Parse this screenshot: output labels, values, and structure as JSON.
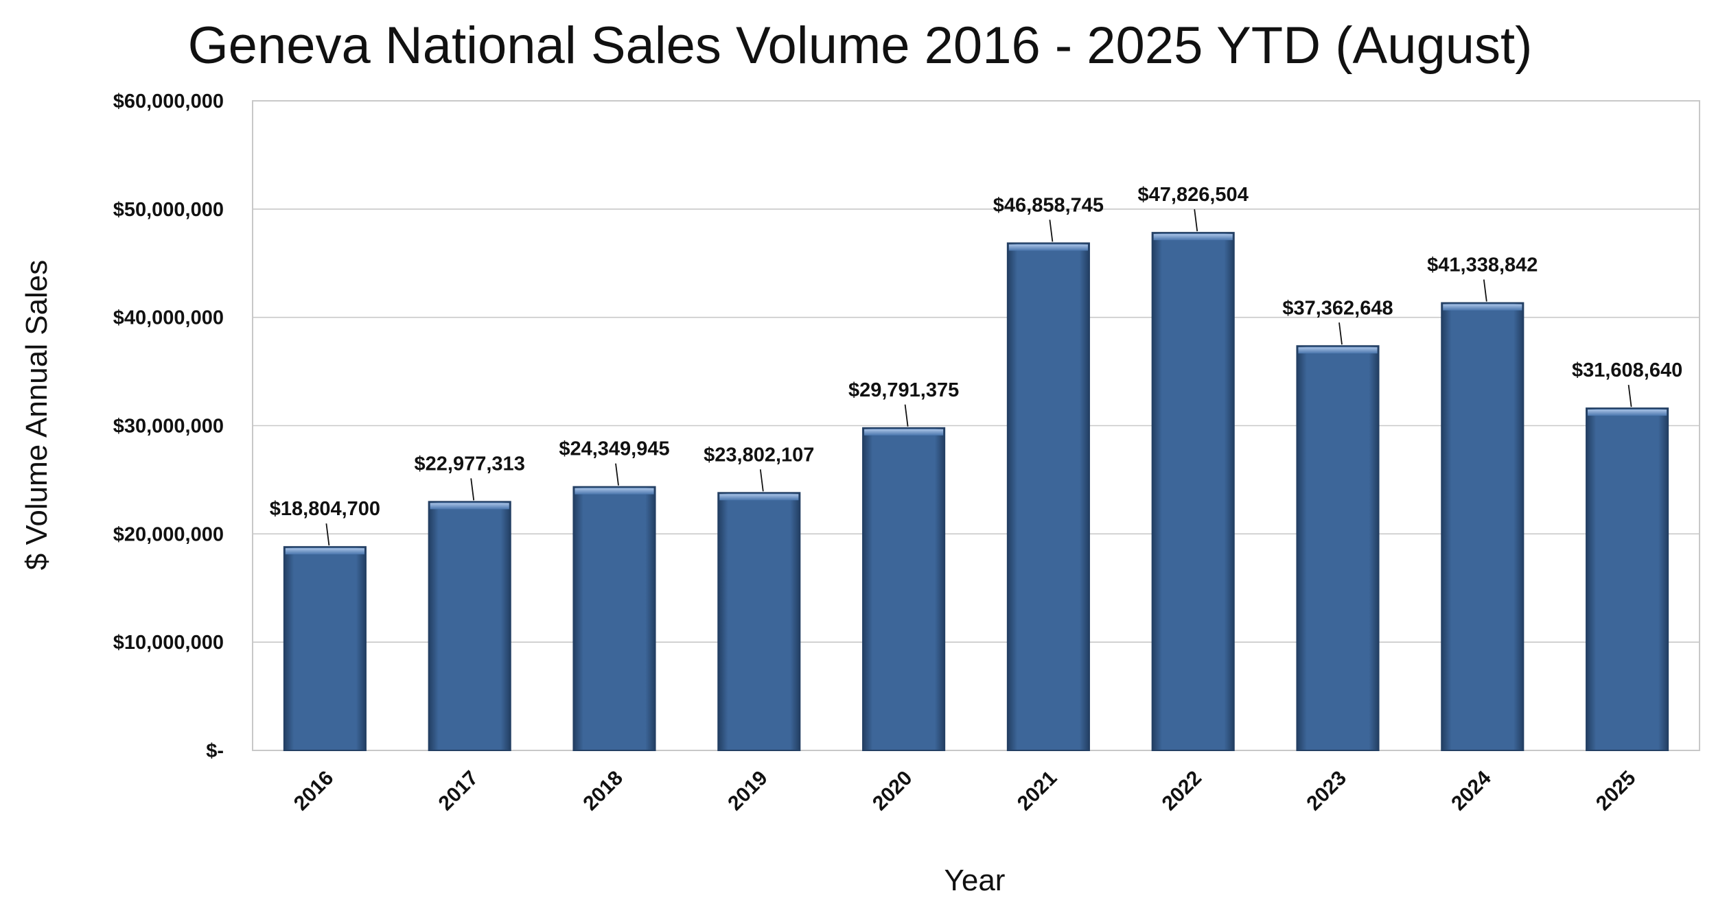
{
  "chart_data": {
    "type": "bar",
    "title": "Geneva National Sales Volume 2016 - 2025 YTD (August)",
    "xlabel": "Year",
    "ylabel": "$ Volume Annual Sales",
    "categories": [
      "2016",
      "2017",
      "2018",
      "2019",
      "2020",
      "2021",
      "2022",
      "2023",
      "2024",
      "2025"
    ],
    "values": [
      18804700,
      22977313,
      24349945,
      23802107,
      29791375,
      46858745,
      47826504,
      37362648,
      41338842,
      31608640
    ],
    "data_labels": [
      "$18,804,700",
      "$22,977,313",
      "$24,349,945",
      "$23,802,107",
      "$29,791,375",
      "$46,858,745",
      "$47,826,504",
      "$37,362,648",
      "$41,338,842",
      "$31,608,640"
    ],
    "ylim": [
      0,
      60000000
    ],
    "yticks": [
      0,
      10000000,
      20000000,
      30000000,
      40000000,
      50000000,
      60000000
    ],
    "ytick_labels": [
      "$-",
      "$10,000,000",
      "$20,000,000",
      "$30,000,000",
      "$40,000,000",
      "$50,000,000",
      "$60,000,000"
    ],
    "grid": true,
    "legend": "none",
    "colors": {
      "bar": "#3d6699",
      "bar_light": "#6f93c4",
      "bar_dark": "#233f63"
    }
  }
}
